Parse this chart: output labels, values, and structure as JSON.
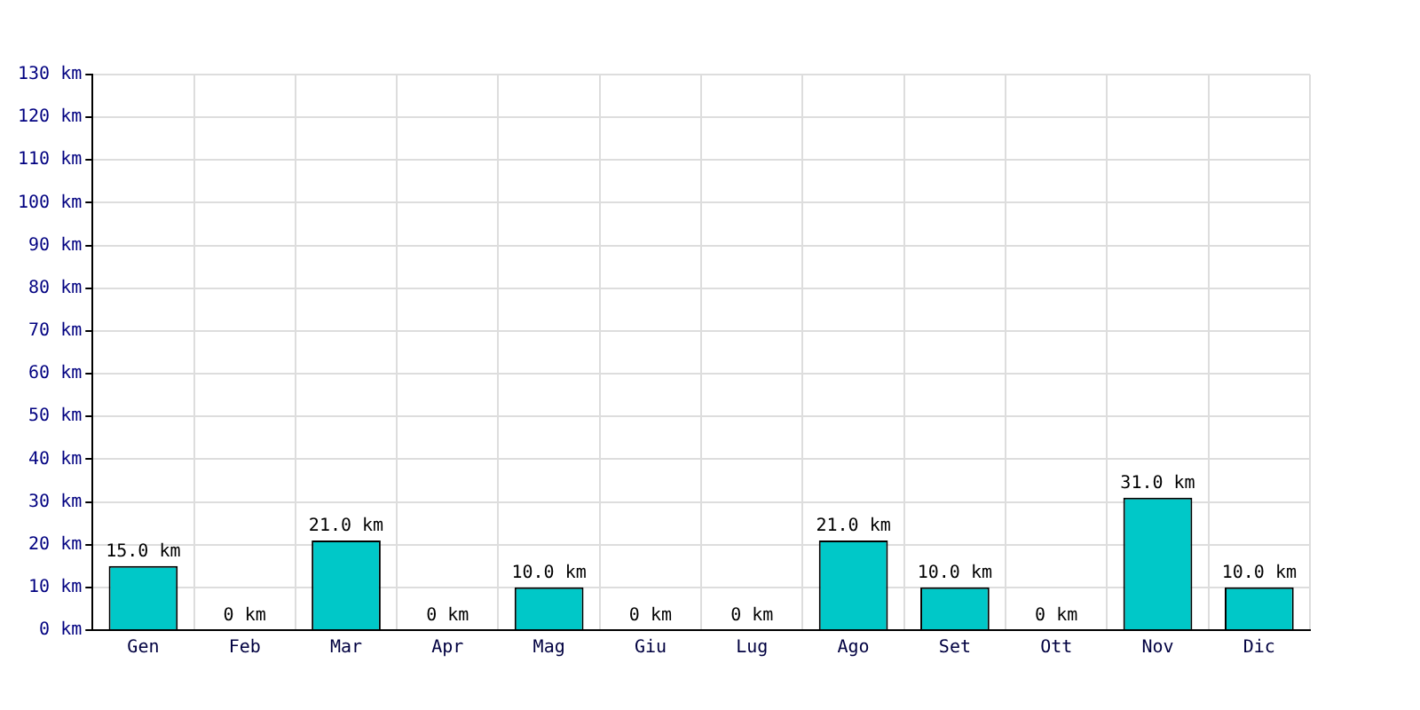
{
  "chart_data": {
    "type": "bar",
    "categories": [
      "Gen",
      "Feb",
      "Mar",
      "Apr",
      "Mag",
      "Giu",
      "Lug",
      "Ago",
      "Set",
      "Ott",
      "Nov",
      "Dic"
    ],
    "values": [
      15,
      0,
      21,
      0,
      10,
      0,
      0,
      21,
      10,
      0,
      31,
      10
    ],
    "value_labels": [
      "15.0 km",
      "0 km",
      "21.0 km",
      "0 km",
      "10.0 km",
      "0 km",
      "0 km",
      "21.0 km",
      "10.0 km",
      "0 km",
      "31.0 km",
      "10.0 km"
    ],
    "color": "#00c8c8",
    "ylim": [
      0,
      130
    ],
    "yticks": [
      {
        "value": 0,
        "label": "0 km"
      },
      {
        "value": 10,
        "label": "10 km"
      },
      {
        "value": 20,
        "label": "20 km"
      },
      {
        "value": 30,
        "label": "30 km"
      },
      {
        "value": 40,
        "label": "40 km"
      },
      {
        "value": 50,
        "label": "50 km"
      },
      {
        "value": 60,
        "label": "60 km"
      },
      {
        "value": 70,
        "label": "70 km"
      },
      {
        "value": 80,
        "label": "80 km"
      },
      {
        "value": 90,
        "label": "90 km"
      },
      {
        "value": 100,
        "label": "100 km"
      },
      {
        "value": 110,
        "label": "110 km"
      },
      {
        "value": 120,
        "label": "120 km"
      },
      {
        "value": 130,
        "label": "130 km"
      }
    ],
    "grid": true,
    "legend": false
  }
}
